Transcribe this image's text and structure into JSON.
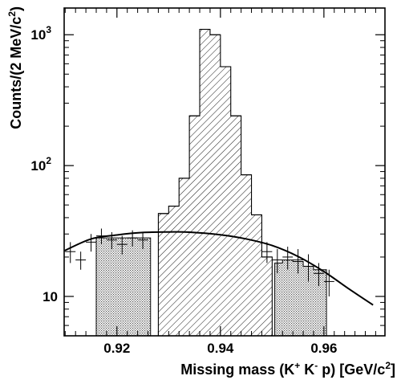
{
  "chart_data": {
    "type": "histogram",
    "xlabel": "Missing mass (K",
    "xlabel_sup1": "+",
    "xlabel_mid": " K",
    "xlabel_sup2": "-",
    "xlabel_tail": " p) [GeV/c",
    "xlabel_sup3": "2",
    "xlabel_end": "]",
    "ylabel": "Counts/(2 MeV/c",
    "ylabel_sup": "2",
    "ylabel_end": ")",
    "xlim": [
      0.9098,
      0.9718
    ],
    "ylim": [
      5,
      1600
    ],
    "yscale": "log",
    "x_ticks": [
      {
        "value": 0.92,
        "label": "0.92"
      },
      {
        "value": 0.94,
        "label": "0.94"
      },
      {
        "value": 0.96,
        "label": "0.96"
      }
    ],
    "y_ticks": [
      {
        "value": 10,
        "label": "10"
      },
      {
        "value": 100,
        "label": "10",
        "sup": "2"
      },
      {
        "value": 1000,
        "label": "10",
        "sup": "3"
      }
    ],
    "signal_histogram": {
      "bin_width": 0.002,
      "bins": [
        {
          "x0": 0.928,
          "value": 43
        },
        {
          "x0": 0.93,
          "value": 49
        },
        {
          "x0": 0.932,
          "value": 80
        },
        {
          "x0": 0.934,
          "value": 240
        },
        {
          "x0": 0.936,
          "value": 1100
        },
        {
          "x0": 0.938,
          "value": 1000
        },
        {
          "x0": 0.94,
          "value": 570
        },
        {
          "x0": 0.942,
          "value": 240
        },
        {
          "x0": 0.944,
          "value": 85
        },
        {
          "x0": 0.946,
          "value": 42
        },
        {
          "x0": 0.948,
          "value": 20
        }
      ]
    },
    "sideband_left": {
      "bin_width": 0.002,
      "bins": [
        {
          "x0": 0.916,
          "value": 28
        },
        {
          "x0": 0.918,
          "value": 28
        },
        {
          "x0": 0.92,
          "value": 28
        },
        {
          "x0": 0.922,
          "value": 28
        },
        {
          "x0": 0.924,
          "value": 28
        }
      ],
      "range": [
        0.916,
        0.9265
      ]
    },
    "sideband_right": {
      "bin_width": 0.002,
      "bins": [
        {
          "x0": 0.95,
          "value": 18
        },
        {
          "x0": 0.952,
          "value": 19
        },
        {
          "x0": 0.954,
          "value": 18.5
        },
        {
          "x0": 0.956,
          "value": 17
        },
        {
          "x0": 0.958,
          "value": 16
        }
      ],
      "range": [
        0.9505,
        0.9605
      ]
    },
    "data_points": [
      {
        "x": 0.911,
        "y": 22,
        "yerr": 4
      },
      {
        "x": 0.913,
        "y": 19,
        "yerr": 3
      },
      {
        "x": 0.915,
        "y": 26,
        "yerr": 4
      },
      {
        "x": 0.917,
        "y": 29,
        "yerr": 4
      },
      {
        "x": 0.919,
        "y": 27,
        "yerr": 4
      },
      {
        "x": 0.921,
        "y": 25,
        "yerr": 4
      },
      {
        "x": 0.923,
        "y": 28,
        "yerr": 4
      },
      {
        "x": 0.925,
        "y": 27,
        "yerr": 4
      },
      {
        "x": 0.949,
        "y": 22,
        "yerr": 4
      },
      {
        "x": 0.951,
        "y": 19,
        "yerr": 4
      },
      {
        "x": 0.953,
        "y": 20,
        "yerr": 4
      },
      {
        "x": 0.955,
        "y": 19,
        "yerr": 4
      },
      {
        "x": 0.957,
        "y": 17,
        "yerr": 4
      },
      {
        "x": 0.959,
        "y": 15,
        "yerr": 3
      },
      {
        "x": 0.961,
        "y": 13,
        "yerr": 3
      }
    ],
    "fit_curve": {
      "peak_x": 0.934,
      "peak_y": 31,
      "x_range": [
        0.9098,
        0.9695
      ],
      "samples": [
        {
          "x": 0.9098,
          "y": 22.3
        },
        {
          "x": 0.915,
          "y": 27.5
        },
        {
          "x": 0.92,
          "y": 29.5
        },
        {
          "x": 0.925,
          "y": 30.8
        },
        {
          "x": 0.93,
          "y": 31.1
        },
        {
          "x": 0.934,
          "y": 31.0
        },
        {
          "x": 0.94,
          "y": 29.6
        },
        {
          "x": 0.945,
          "y": 27.5
        },
        {
          "x": 0.95,
          "y": 24.5
        },
        {
          "x": 0.955,
          "y": 20.2
        },
        {
          "x": 0.96,
          "y": 15.5
        },
        {
          "x": 0.965,
          "y": 11.3
        },
        {
          "x": 0.9695,
          "y": 8.6
        }
      ]
    },
    "grid": false,
    "legend": "none"
  }
}
